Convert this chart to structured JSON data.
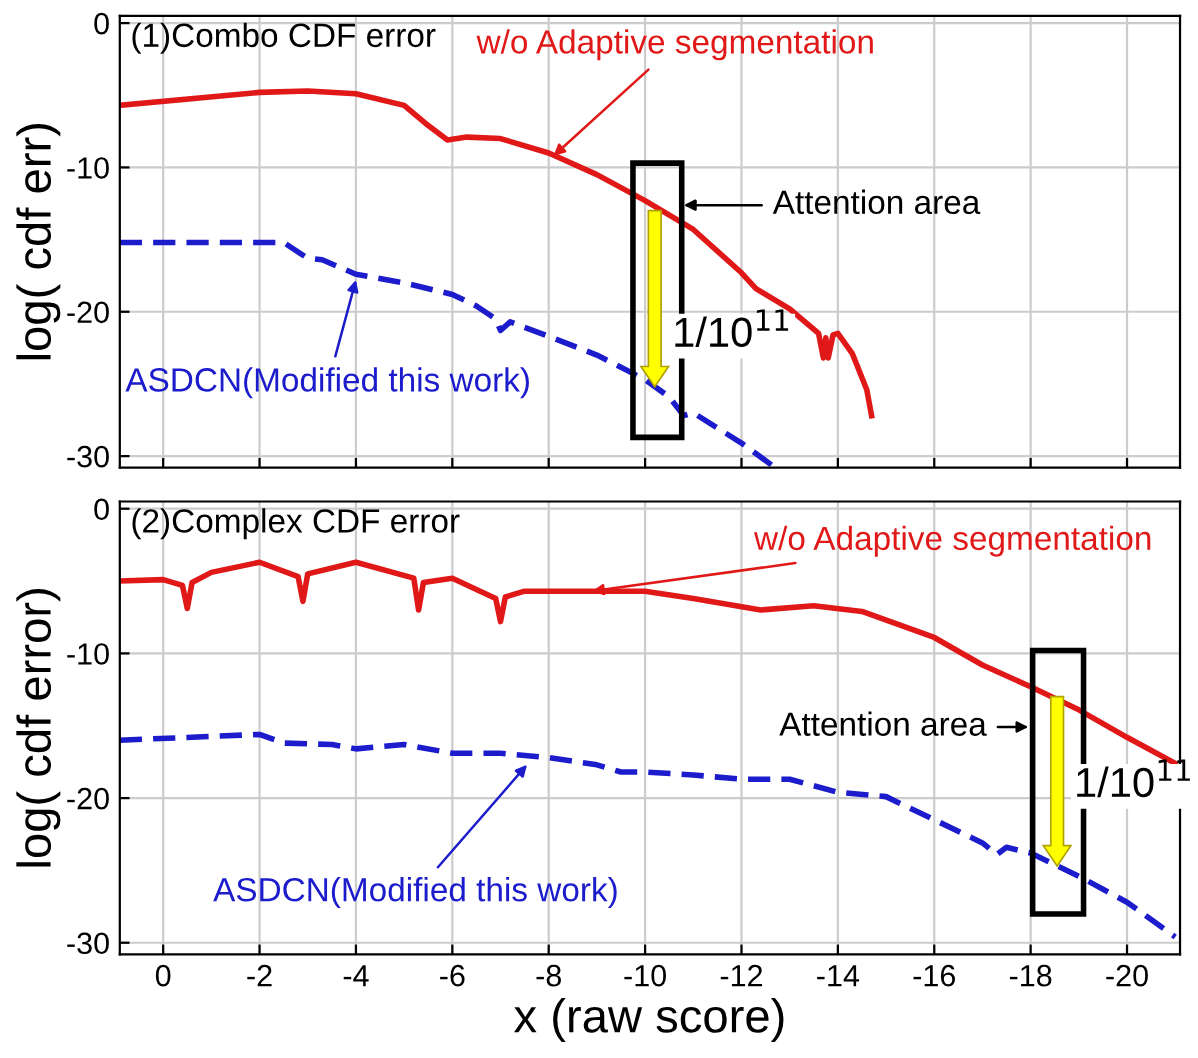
{
  "chart_data": [
    {
      "type": "line",
      "title": "(1)Combo CDF error",
      "ylabel": "log( cdf err)",
      "xlim": [
        0.9,
        -21.1
      ],
      "ylim": [
        -30.8,
        0.5
      ],
      "xticks": [
        0,
        -2,
        -4,
        -6,
        -8,
        -10,
        -12,
        -14,
        -16,
        -18,
        -20
      ],
      "yticks": [
        0,
        -10,
        -20,
        -30
      ],
      "grid": true,
      "tick_labels": "y",
      "series": [
        {
          "color": "#e01818",
          "line_style": "solid",
          "x": [
            0.9,
            -2,
            -3,
            -4,
            -5,
            -5.5,
            -5.9,
            -6.3,
            -7,
            -8,
            -9,
            -10,
            -11,
            -12,
            -12.3,
            -13,
            -13.6,
            -13.7,
            -13.75,
            -13.8,
            -13.9,
            -14,
            -14.3,
            -14.6,
            -14.7
          ],
          "values": [
            -5.7,
            -4.8,
            -4.7,
            -4.9,
            -5.7,
            -7.1,
            -8.1,
            -7.9,
            -8,
            -9,
            -10.5,
            -12.3,
            -14.3,
            -17.3,
            -18.4,
            -19.8,
            -21.5,
            -23.2,
            -21.8,
            -23.2,
            -21.6,
            -21.5,
            -22.9,
            -25.4,
            -27.2
          ]
        },
        {
          "color": "#1c1ccc",
          "line_style": "dashed",
          "x": [
            0.9,
            -2.5,
            -3,
            -3.3,
            -4,
            -5,
            -6,
            -6.5,
            -6.9,
            -7,
            -7.2,
            -8,
            -9,
            -10,
            -10.5,
            -10.8,
            -11,
            -12,
            -12.7
          ],
          "values": [
            -15.2,
            -15.2,
            -16.3,
            -16.4,
            -17.4,
            -18,
            -18.8,
            -19.6,
            -20.5,
            -21.3,
            -20.7,
            -21.7,
            -23,
            -24.7,
            -25.9,
            -27.2,
            -27,
            -29.1,
            -30.8
          ]
        }
      ],
      "annotations": [
        {
          "text": "w/o Adaptive segmentation",
          "x": -8.1,
          "y": -9.2
        },
        {
          "text": "ASDCN(Modified this work)",
          "x": -4,
          "y": -17.8
        },
        "Attention area",
        {
          "text": "1/10$^{11}$",
          "x": -10.2,
          "y": -25.2
        }
      ]
    },
    {
      "type": "line",
      "title": "(2)Complex CDF error",
      "ylabel": "log( cdf error)",
      "xlabel": "x (raw score)",
      "xlim": [
        0.9,
        -21.1
      ],
      "ylim": [
        -30.8,
        0.5
      ],
      "xticks": [
        0,
        -2,
        -4,
        -6,
        -8,
        -10,
        -12,
        -14,
        -16,
        -18,
        -20
      ],
      "yticks": [
        0,
        -10,
        -20,
        -30
      ],
      "grid": true,
      "series": [
        {
          "color": "#e01818",
          "line_style": "solid",
          "x": [
            0.9,
            0,
            -0.4,
            -0.5,
            -0.6,
            -1,
            -2,
            -2.8,
            -2.9,
            -3,
            -4,
            -5.2,
            -5.3,
            -5.4,
            -6,
            -6.9,
            -7,
            -7.1,
            -7.5,
            -10,
            -11,
            -12.4,
            -13.5,
            -14.5,
            -16,
            -17,
            -18,
            -19,
            -20,
            -21
          ],
          "values": [
            -5,
            -4.9,
            -5.3,
            -6.9,
            -5.1,
            -4.4,
            -3.7,
            -4.7,
            -6.4,
            -4.5,
            -3.7,
            -4.8,
            -7,
            -5.1,
            -4.8,
            -6.2,
            -7.8,
            -6.1,
            -5.7,
            -5.7,
            -6.2,
            -7,
            -6.7,
            -7.1,
            -8.9,
            -10.8,
            -12.3,
            -13.9,
            -15.8,
            -17.6
          ]
        },
        {
          "color": "#1c1ccc",
          "line_style": "dashed",
          "x": [
            0.9,
            -2,
            -2.5,
            -3.5,
            -4,
            -5,
            -6,
            -7,
            -8,
            -9,
            -9.5,
            -10,
            -11,
            -12,
            -13,
            -14,
            -15,
            -16,
            -17,
            -17.3,
            -17.5,
            -18,
            -19,
            -20,
            -21
          ],
          "values": [
            -16,
            -15.6,
            -16.2,
            -16.3,
            -16.6,
            -16.3,
            -16.9,
            -16.9,
            -17.2,
            -17.7,
            -18.2,
            -18.2,
            -18.4,
            -18.7,
            -18.7,
            -19.6,
            -19.9,
            -21.5,
            -23.1,
            -23.9,
            -23.4,
            -23.8,
            -25.4,
            -27.2,
            -29.6
          ]
        }
      ],
      "annotations": [
        {
          "text": "w/o Adaptive segmentation",
          "x": -8.9,
          "y": -5.7
        },
        {
          "text": "ASDCN(Modified this work)",
          "x": -7.55,
          "y": -17.7
        },
        "Attention area",
        {
          "text": "1/10$^{11}$",
          "x": -18.55,
          "y": -24.7
        }
      ]
    }
  ]
}
